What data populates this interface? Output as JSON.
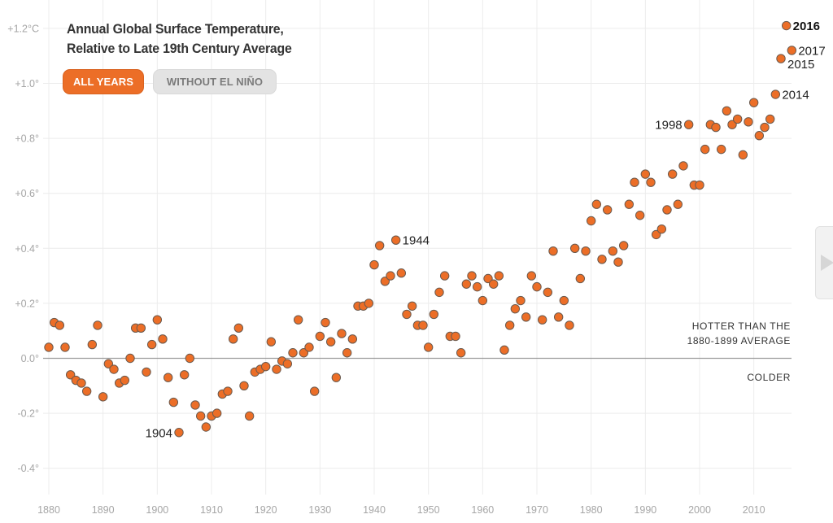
{
  "title": {
    "line1": "Annual Global Surface Temperature,",
    "line2": "Relative to Late 19th Century Average"
  },
  "toggle": {
    "options": [
      {
        "label": "ALL YEARS",
        "active": true
      },
      {
        "label": "WITHOUT EL NIÑO",
        "active": false
      }
    ]
  },
  "colors": {
    "dot_fill": "#ec6e27",
    "dot_stroke": "#6b5a4e",
    "grid": "#ececec",
    "zero_line": "#9a9a9a",
    "tick_text": "#a6a6a6",
    "active_button": "#ec6e27",
    "inactive_button": "#e3e3e3"
  },
  "side_panel": {
    "icon": "next-arrow-icon"
  },
  "chart_data": {
    "type": "scatter",
    "title": "Annual Global Surface Temperature, Relative to Late 19th Century Average",
    "xlabel": "",
    "ylabel": "",
    "xlim": [
      1880,
      2017
    ],
    "ylim": [
      -0.5,
      1.2
    ],
    "grid": true,
    "x_ticks": [
      1880,
      1890,
      1900,
      1910,
      1920,
      1930,
      1940,
      1950,
      1960,
      1970,
      1980,
      1990,
      2000,
      2010
    ],
    "x_tick_labels": [
      "1880",
      "1890",
      "1900",
      "1910",
      "1920",
      "1930",
      "1940",
      "1950",
      "1960",
      "1970",
      "1980",
      "1990",
      "2000",
      "2010"
    ],
    "y_ticks": [
      1.2,
      1.0,
      0.8,
      0.6,
      0.4,
      0.2,
      0.0,
      -0.2,
      -0.4
    ],
    "y_tick_labels": [
      "+1.2°C",
      "+1.0°",
      "+0.8°",
      "+0.6°",
      "+0.4°",
      "+0.2°",
      "0.0°",
      "-0.2°",
      "-0.4°"
    ],
    "reference_line": {
      "y": 0.0,
      "label_above": [
        "HOTTER THAN THE",
        "1880-1899 AVERAGE"
      ],
      "label_below": "COLDER"
    },
    "annotations": [
      {
        "year": 1904,
        "text": "1904",
        "side": "left",
        "bold": false
      },
      {
        "year": 1944,
        "text": "1944",
        "side": "right",
        "bold": false
      },
      {
        "year": 1998,
        "text": "1998",
        "side": "left",
        "bold": false
      },
      {
        "year": 2014,
        "text": "2014",
        "side": "right",
        "bold": false
      },
      {
        "year": 2015,
        "text": "2015",
        "side": "below-right",
        "bold": false
      },
      {
        "year": 2016,
        "text": "2016",
        "side": "right",
        "bold": true
      },
      {
        "year": 2017,
        "text": "2017",
        "side": "right",
        "bold": false
      }
    ],
    "series": [
      {
        "name": "All years",
        "x": [
          1880,
          1881,
          1882,
          1883,
          1884,
          1885,
          1886,
          1887,
          1888,
          1889,
          1890,
          1891,
          1892,
          1893,
          1894,
          1895,
          1896,
          1897,
          1898,
          1899,
          1900,
          1901,
          1902,
          1903,
          1904,
          1905,
          1906,
          1907,
          1908,
          1909,
          1910,
          1911,
          1912,
          1913,
          1914,
          1915,
          1916,
          1917,
          1918,
          1919,
          1920,
          1921,
          1922,
          1923,
          1924,
          1925,
          1926,
          1927,
          1928,
          1929,
          1930,
          1931,
          1932,
          1933,
          1934,
          1935,
          1936,
          1937,
          1938,
          1939,
          1940,
          1941,
          1942,
          1943,
          1944,
          1945,
          1946,
          1947,
          1948,
          1949,
          1950,
          1951,
          1952,
          1953,
          1954,
          1955,
          1956,
          1957,
          1958,
          1959,
          1960,
          1961,
          1962,
          1963,
          1964,
          1965,
          1966,
          1967,
          1968,
          1969,
          1970,
          1971,
          1972,
          1973,
          1974,
          1975,
          1976,
          1977,
          1978,
          1979,
          1980,
          1981,
          1982,
          1983,
          1984,
          1985,
          1986,
          1987,
          1988,
          1989,
          1990,
          1991,
          1992,
          1993,
          1994,
          1995,
          1996,
          1997,
          1998,
          1999,
          2000,
          2001,
          2002,
          2003,
          2004,
          2005,
          2006,
          2007,
          2008,
          2009,
          2010,
          2011,
          2012,
          2013,
          2014,
          2015,
          2016,
          2017
        ],
        "values": [
          0.04,
          0.13,
          0.12,
          0.04,
          -0.06,
          -0.08,
          -0.09,
          -0.12,
          0.05,
          0.12,
          -0.14,
          -0.02,
          -0.04,
          -0.09,
          -0.08,
          0.0,
          0.11,
          0.11,
          -0.05,
          0.05,
          0.14,
          0.07,
          -0.07,
          -0.16,
          -0.27,
          -0.06,
          0.0,
          -0.17,
          -0.21,
          -0.25,
          -0.21,
          -0.2,
          -0.13,
          -0.12,
          0.07,
          0.11,
          -0.1,
          -0.21,
          -0.05,
          -0.04,
          -0.03,
          0.06,
          -0.04,
          -0.01,
          -0.02,
          0.02,
          0.14,
          0.02,
          0.04,
          -0.12,
          0.08,
          0.13,
          0.06,
          -0.07,
          0.09,
          0.02,
          0.07,
          0.19,
          0.19,
          0.2,
          0.34,
          0.41,
          0.28,
          0.3,
          0.43,
          0.31,
          0.16,
          0.19,
          0.12,
          0.12,
          0.04,
          0.16,
          0.24,
          0.3,
          0.08,
          0.08,
          0.02,
          0.27,
          0.3,
          0.26,
          0.21,
          0.29,
          0.27,
          0.3,
          0.03,
          0.12,
          0.18,
          0.21,
          0.15,
          0.3,
          0.26,
          0.14,
          0.24,
          0.39,
          0.15,
          0.21,
          0.12,
          0.4,
          0.29,
          0.39,
          0.5,
          0.56,
          0.36,
          0.54,
          0.39,
          0.35,
          0.41,
          0.56,
          0.64,
          0.52,
          0.67,
          0.64,
          0.45,
          0.47,
          0.54,
          0.67,
          0.56,
          0.7,
          0.85,
          0.63,
          0.63,
          0.76,
          0.85,
          0.84,
          0.76,
          0.9,
          0.85,
          0.87,
          0.74,
          0.86,
          0.93,
          0.81,
          0.84,
          0.87,
          0.96,
          1.09,
          1.21,
          1.12
        ]
      }
    ]
  }
}
